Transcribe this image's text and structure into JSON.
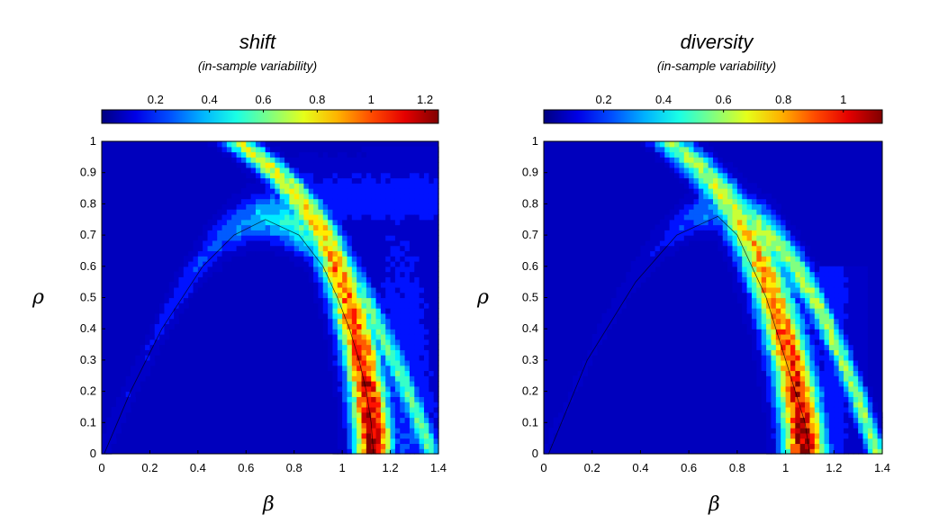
{
  "chart_data": [
    {
      "type": "heatmap",
      "title": "shift",
      "subtitle": "(in-sample variability)",
      "xlabel": "β",
      "ylabel": "ρ",
      "xlim": [
        0,
        1.4
      ],
      "ylim": [
        0,
        1
      ],
      "xticks": [
        "0",
        "0.2",
        "0.4",
        "0.6",
        "0.8",
        "1",
        "1.2",
        "1.4"
      ],
      "yticks": [
        "0",
        "0.1",
        "0.2",
        "0.3",
        "0.4",
        "0.5",
        "0.6",
        "0.7",
        "0.8",
        "0.9",
        "1"
      ],
      "colorbar": {
        "min": 0,
        "max": 1.25,
        "ticks": [
          "0.2",
          "0.4",
          "0.6",
          "0.8",
          "1",
          "1.2"
        ],
        "tick_values": [
          0.2,
          0.4,
          0.6,
          0.8,
          1.0,
          1.2
        ]
      },
      "colormap": "jet",
      "ridge": [
        {
          "rho": 0.0,
          "beta": 1.13
        },
        {
          "rho": 0.1,
          "beta": 1.12
        },
        {
          "rho": 0.2,
          "beta": 1.1
        },
        {
          "rho": 0.3,
          "beta": 1.07
        },
        {
          "rho": 0.4,
          "beta": 1.03
        },
        {
          "rho": 0.5,
          "beta": 0.98
        },
        {
          "rho": 0.6,
          "beta": 0.92
        },
        {
          "rho": 0.7,
          "beta": 0.82
        },
        {
          "rho": 0.75,
          "beta": 0.68
        },
        {
          "rho": 0.7,
          "beta": 0.55
        },
        {
          "rho": 0.6,
          "beta": 0.42
        },
        {
          "rho": 0.4,
          "beta": 0.25
        },
        {
          "rho": 0.2,
          "beta": 0.12
        },
        {
          "rho": 0.0,
          "beta": 0.01
        }
      ],
      "peak_value": 1.25,
      "peak_location": {
        "beta": 1.13,
        "rho": 0.1
      }
    },
    {
      "type": "heatmap",
      "title": "diversity",
      "subtitle": "(in-sample variability)",
      "xlabel": "β",
      "ylabel": "ρ",
      "xlim": [
        0,
        1.4
      ],
      "ylim": [
        0,
        1
      ],
      "xticks": [
        "0",
        "0.2",
        "0.4",
        "0.6",
        "0.8",
        "1",
        "1.2",
        "1.4"
      ],
      "yticks": [
        "0",
        "0.1",
        "0.2",
        "0.3",
        "0.4",
        "0.5",
        "0.6",
        "0.7",
        "0.8",
        "0.9",
        "1"
      ],
      "colorbar": {
        "min": 0,
        "max": 1.13,
        "ticks": [
          "0.2",
          "0.4",
          "0.6",
          "0.8",
          "1"
        ],
        "tick_values": [
          0.2,
          0.4,
          0.6,
          0.8,
          1.0
        ]
      },
      "colormap": "jet",
      "ridge": [
        {
          "rho": 0.0,
          "beta": 1.1
        },
        {
          "rho": 0.1,
          "beta": 1.08
        },
        {
          "rho": 0.2,
          "beta": 1.04
        },
        {
          "rho": 0.3,
          "beta": 1.0
        },
        {
          "rho": 0.4,
          "beta": 0.96
        },
        {
          "rho": 0.5,
          "beta": 0.92
        },
        {
          "rho": 0.6,
          "beta": 0.86
        },
        {
          "rho": 0.7,
          "beta": 0.8
        },
        {
          "rho": 0.76,
          "beta": 0.72
        },
        {
          "rho": 0.7,
          "beta": 0.55
        },
        {
          "rho": 0.55,
          "beta": 0.38
        },
        {
          "rho": 0.3,
          "beta": 0.18
        },
        {
          "rho": 0.0,
          "beta": 0.02
        }
      ],
      "peak_value": 1.13,
      "peak_location": {
        "beta": 1.08,
        "rho": 0.12
      }
    }
  ]
}
